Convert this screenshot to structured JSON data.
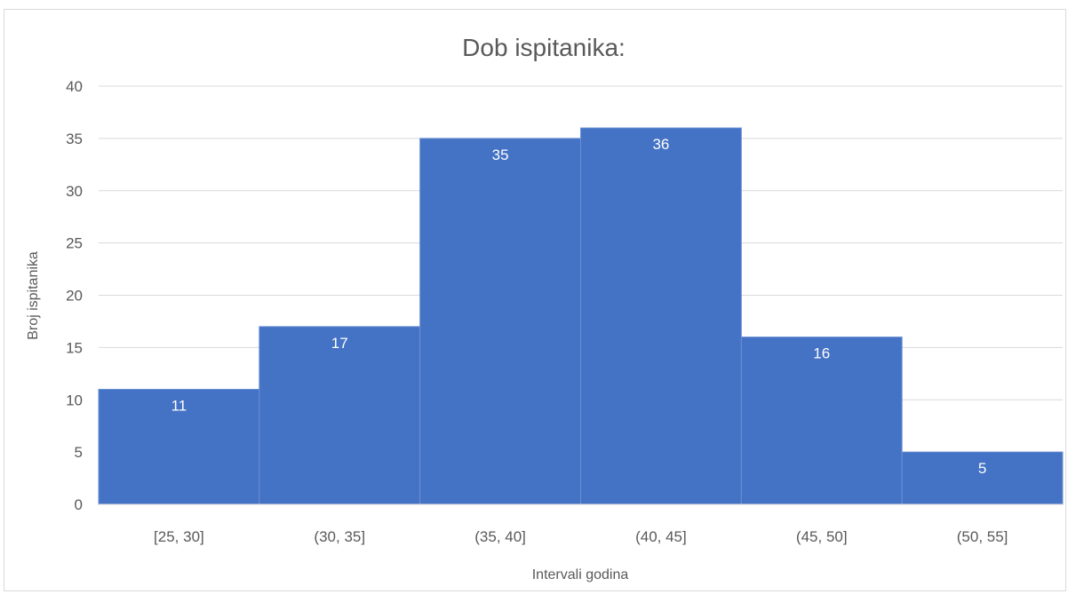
{
  "chart_data": {
    "type": "bar",
    "title": "Dob ispitanika:",
    "xlabel": "Intervali godina",
    "ylabel": "Broj ispitanika",
    "categories": [
      "[25, 30]",
      "(30, 35]",
      "(35, 40]",
      "(40, 45]",
      "(45, 50]",
      "(50, 55]"
    ],
    "values": [
      11,
      17,
      35,
      36,
      16,
      5
    ],
    "ylim": [
      0,
      40
    ],
    "yticks": [
      0,
      5,
      10,
      15,
      20,
      25,
      30,
      35,
      40
    ],
    "grid": true,
    "bar_color": "#4472c4",
    "data_labels": true
  }
}
